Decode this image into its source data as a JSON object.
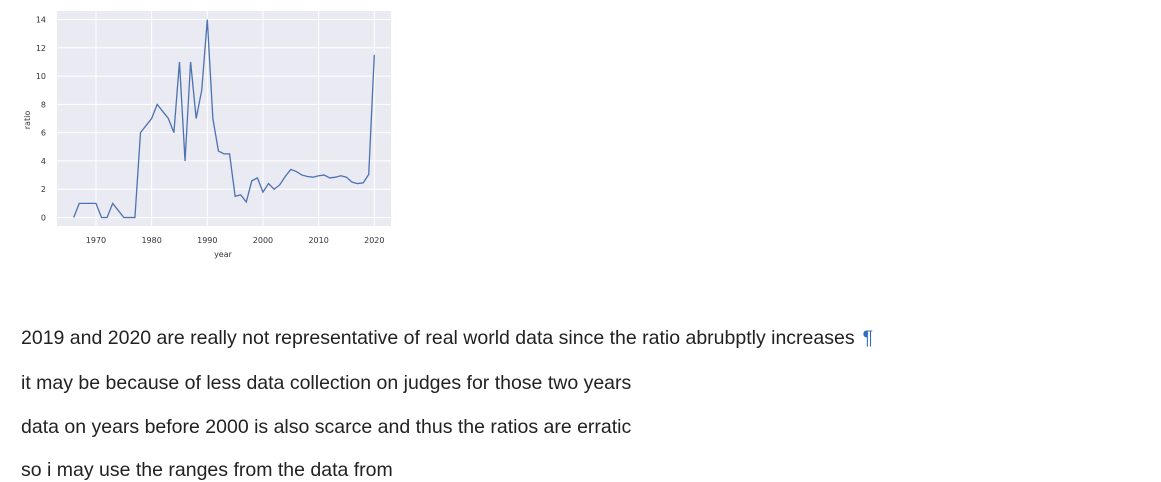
{
  "chart_data": {
    "type": "line",
    "xlabel": "year",
    "ylabel": "ratio",
    "xlim": [
      1963,
      2023
    ],
    "ylim": [
      -0.6,
      14.6
    ],
    "x_ticks": [
      1970,
      1980,
      1990,
      2000,
      2010,
      2020
    ],
    "y_ticks": [
      0,
      2,
      4,
      6,
      8,
      10,
      12,
      14
    ],
    "grid": true,
    "background_color": "#eaeaf2",
    "line_color": "#4c72b0",
    "series": [
      {
        "x": [
          1966,
          1967,
          1968,
          1969,
          1970,
          1971,
          1972,
          1973,
          1974,
          1975,
          1976,
          1977,
          1978,
          1979,
          1980,
          1981,
          1982,
          1983,
          1984,
          1985,
          1986,
          1987,
          1988,
          1989,
          1990,
          1991,
          1992,
          1993,
          1994,
          1995,
          1996,
          1997,
          1998,
          1999,
          2000,
          2001,
          2002,
          2003,
          2004,
          2005,
          2006,
          2007,
          2008,
          2009,
          2010,
          2011,
          2012,
          2013,
          2014,
          2015,
          2016,
          2017,
          2018,
          2019,
          2020
        ],
        "values": [
          0,
          1,
          1,
          1,
          1,
          0,
          0,
          1,
          0.5,
          0,
          0,
          0,
          6,
          6.5,
          7,
          8,
          7.5,
          7,
          6,
          11,
          4,
          11,
          7,
          9,
          14,
          7,
          4.7,
          4.5,
          4.5,
          1.5,
          1.6,
          1.1,
          2.6,
          2.8,
          1.8,
          2.4,
          2.0,
          2.3,
          2.9,
          3.4,
          3.25,
          3.0,
          2.9,
          2.85,
          2.95,
          3.0,
          2.8,
          2.85,
          2.95,
          2.85,
          2.5,
          2.4,
          2.45,
          3.05,
          11.5
        ]
      }
    ]
  },
  "cells": {
    "line1": "2019 and 2020 are really not representative of real world data since the ratio abrubptly increases",
    "anchor": "¶",
    "line2": "it may be because of less data collection on judges for those two years",
    "line3": "data on years before 2000 is also scarce and thus the ratios are erratic",
    "line4": "so i may use the ranges from the data from"
  }
}
